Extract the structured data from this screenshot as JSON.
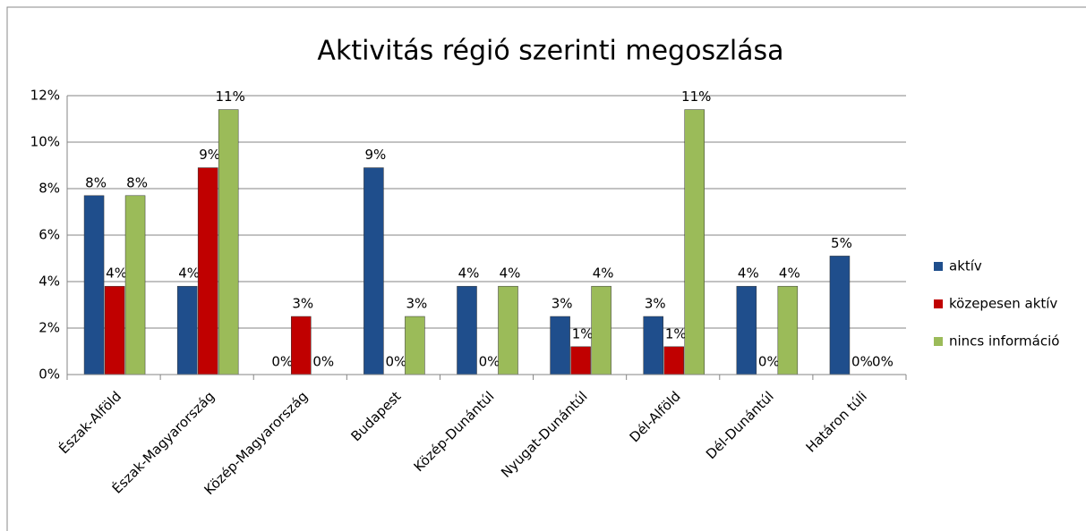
{
  "chart_data": {
    "type": "bar",
    "title": "Aktivitás régió szerinti megoszlása",
    "categories": [
      "Észak-Alföld",
      "Észak-Magyarország",
      "Közép-Magyarország",
      "Budapest",
      "Közép-Dunántúl",
      "Nyugat-Dunántúl",
      "Dél-Alföld",
      "Dél-Dunántúl",
      "Határon túli"
    ],
    "series": [
      {
        "name": "aktív",
        "color": "#1f4e8c",
        "values": [
          7.7,
          3.8,
          0,
          8.9,
          3.8,
          2.5,
          2.5,
          3.8,
          5.1
        ],
        "value_labels": [
          "8%",
          "4%",
          "0%",
          "9%",
          "4%",
          "3%",
          "3%",
          "4%",
          "5%"
        ]
      },
      {
        "name": "közepesen aktív",
        "color": "#c00000",
        "values": [
          3.8,
          8.9,
          2.5,
          0,
          0,
          1.2,
          1.2,
          0,
          0
        ],
        "value_labels": [
          "4%",
          "9%",
          "3%",
          "0%",
          "0%",
          "1%",
          "1%",
          "0%",
          "0%"
        ]
      },
      {
        "name": "nincs információ",
        "color": "#9bbb59",
        "values": [
          7.7,
          11.4,
          0,
          2.5,
          3.8,
          3.8,
          11.4,
          3.8,
          0
        ],
        "value_labels": [
          "8%",
          "11%",
          "0%",
          "3%",
          "4%",
          "4%",
          "11%",
          "4%",
          "0%"
        ]
      }
    ],
    "ylim": [
      0,
      12
    ],
    "yticks": [
      {
        "value": 0,
        "label": "0%"
      },
      {
        "value": 2,
        "label": "2%"
      },
      {
        "value": 4,
        "label": "4%"
      },
      {
        "value": 6,
        "label": "6%"
      },
      {
        "value": 8,
        "label": "8%"
      },
      {
        "value": 10,
        "label": "10%"
      },
      {
        "value": 12,
        "label": "12%"
      }
    ],
    "grid": true,
    "legend": "right"
  }
}
